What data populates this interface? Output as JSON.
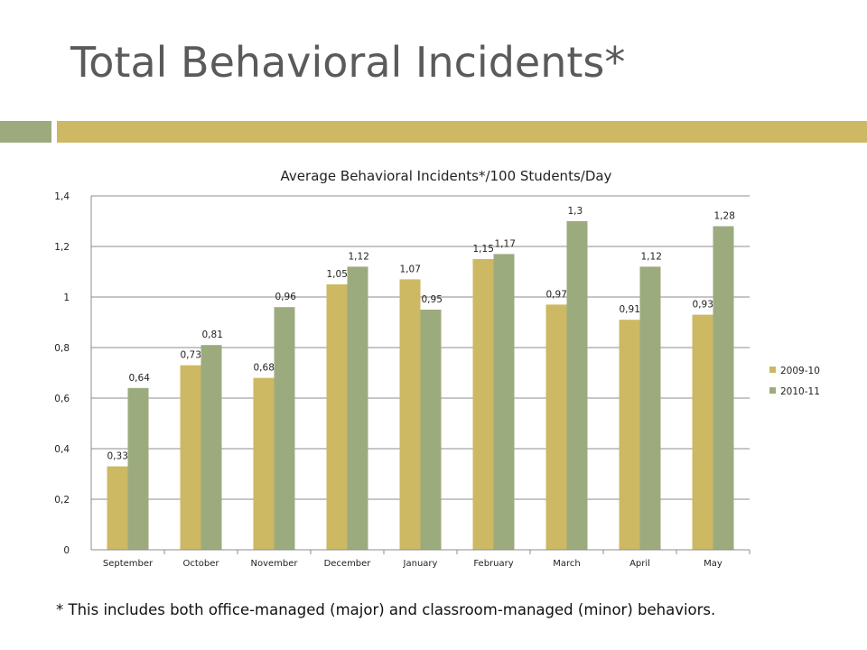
{
  "slide": {
    "title": "Total Behavioral Incidents*",
    "footnote": "* This includes both office-managed (major) and classroom-managed (minor) behaviors."
  },
  "colors": {
    "title": "#5a5a5a",
    "band_left": "#9bab7e",
    "band_right": "#cdb863",
    "series_2009": "#cdb863",
    "series_2010": "#9bab7e",
    "grid": "#8c8c8c"
  },
  "chart_data": {
    "type": "bar",
    "title": "Average Behavioral Incidents*/100 Students/Day",
    "xlabel": "",
    "ylabel": "",
    "ylim": [
      0,
      1.4
    ],
    "yticks": [
      "0",
      "0,2",
      "0,4",
      "0,6",
      "0,8",
      "1",
      "1,2",
      "1,4"
    ],
    "grid": true,
    "legend_position": "right",
    "categories": [
      "September",
      "October",
      "November",
      "December",
      "January",
      "February",
      "March",
      "April",
      "May"
    ],
    "series": [
      {
        "name": "2009-10",
        "color": "#cdb863",
        "values": [
          0.33,
          0.73,
          0.68,
          1.05,
          1.07,
          1.15,
          0.97,
          0.91,
          0.93
        ],
        "labels": [
          "0,33",
          "0,73",
          "0,68",
          "1,05",
          "1,07",
          "1,15",
          "0,97",
          "0,91",
          "0,93"
        ]
      },
      {
        "name": "2010-11",
        "color": "#9bab7e",
        "values": [
          0.64,
          0.81,
          0.96,
          1.12,
          0.95,
          1.17,
          1.3,
          1.12,
          1.28
        ],
        "labels": [
          "0,64",
          "0,81",
          "0,96",
          "1,12",
          "0,95",
          "1,17",
          "1,3",
          "1,12",
          "1,28"
        ]
      }
    ]
  }
}
